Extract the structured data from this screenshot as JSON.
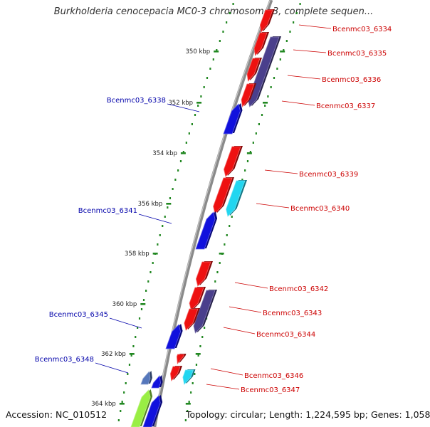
{
  "title": "Burkholderia cenocepacia MC0-3 chromosome 3, complete sequen...",
  "footer": {
    "accession_label": "Accession:",
    "accession": "NC_010512",
    "topology_label": "Topology:",
    "topology": "circular;",
    "length_label": "Length:",
    "length": "1,224,595 bp;",
    "genes_label": "Genes:",
    "genes": "1,058"
  },
  "colors": {
    "backbone": "#8a8a8a",
    "forward_gene": "#ee1111",
    "reverse_gene": "#1111dd",
    "cds_dark": "#4a3f8c",
    "cds_cyan": "#22d6f0",
    "tick": "#228822",
    "label_forward": "#cc0000",
    "label_reverse": "#0000aa"
  },
  "ticks": [
    "350 kbp",
    "352 kbp",
    "354 kbp",
    "356 kbp",
    "358 kbp",
    "360 kbp",
    "362 kbp",
    "364 kbp"
  ],
  "genes_forward": [
    "Bcenmc03_6334",
    "Bcenmc03_6335",
    "Bcenmc03_6336",
    "Bcenmc03_6337",
    "Bcenmc03_6339",
    "Bcenmc03_6340",
    "Bcenmc03_6342",
    "Bcenmc03_6343",
    "Bcenmc03_6344",
    "Bcenmc03_6346",
    "Bcenmc03_6347"
  ],
  "genes_reverse": [
    "Bcenmc03_6338",
    "Bcenmc03_6341",
    "Bcenmc03_6345",
    "Bcenmc03_6348"
  ]
}
